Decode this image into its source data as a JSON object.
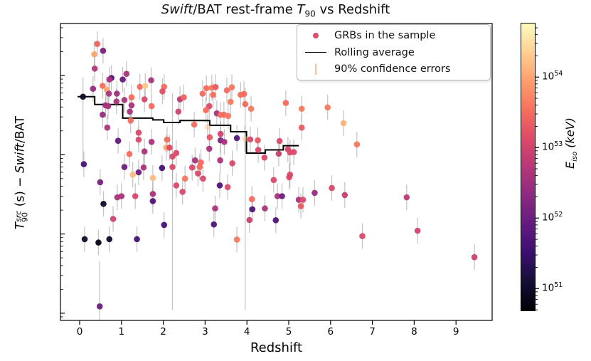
{
  "title_parts": [
    {
      "text": "Swift",
      "italic": true
    },
    {
      "text": "/BAT rest-frame ",
      "italic": false
    },
    {
      "text": "T",
      "italic": true
    },
    {
      "text": "90",
      "sub": true
    },
    {
      "text": " vs Redshift",
      "italic": false
    }
  ],
  "axes": {
    "xlabel": "Redshift",
    "x_ticks": [
      "0",
      "1",
      "2",
      "3",
      "4",
      "5",
      "6",
      "7",
      "8",
      "9"
    ],
    "y_ticks": [
      {
        "exp": "2"
      },
      {
        "exp": "1"
      },
      {
        "exp": "0"
      },
      {
        "exp": "−1"
      }
    ],
    "ylabel_parts": [
      {
        "text": "T",
        "italic": true
      },
      {
        "supsub": {
          "sup": "src",
          "sub": "90"
        }
      },
      {
        "text": " (s)  −  ",
        "italic": false
      },
      {
        "text": "Swift",
        "italic": true
      },
      {
        "text": "/BAT",
        "italic": false
      }
    ]
  },
  "legend": {
    "items": [
      {
        "marker": "dot",
        "label": "GRBs in the sample",
        "color": "#d94f6b"
      },
      {
        "marker": "line",
        "label": "Rolling average",
        "color": "#000000"
      },
      {
        "marker": "errbar",
        "label": "90% confidence errors",
        "color": "#f8c18e"
      }
    ]
  },
  "colorbar": {
    "label_parts": [
      {
        "text": "E",
        "italic": true
      },
      {
        "text": "iso",
        "sub": true
      },
      {
        "text": " (keV)",
        "italic": false
      }
    ],
    "ticks": [
      {
        "exp": "54"
      },
      {
        "exp": "53"
      },
      {
        "exp": "52"
      },
      {
        "exp": "51"
      }
    ],
    "log_min": 50.68,
    "log_max": 54.77
  },
  "colors": {
    "errorbar": "rgba(145,145,145,0.55)",
    "rolling_line": "#000000",
    "frame": "#000000",
    "magma_anchors": [
      "#000004",
      "#140e36",
      "#3b0f70",
      "#641a80",
      "#8c2981",
      "#b73779",
      "#de4968",
      "#f7705c",
      "#fe9f6d",
      "#fecf92",
      "#fcfdbf"
    ]
  },
  "chart_data": {
    "type": "scatter",
    "title": "Swift/BAT rest-frame T90 vs Redshift",
    "xlabel": "Redshift",
    "ylabel": "T90^src (s) - Swift/BAT",
    "colorbar_label": "E_iso (keV)",
    "xlim": [
      -0.46,
      9.87
    ],
    "ylog_lim": [
      -1.09,
      2.656
    ],
    "color_log_lim": [
      50.68,
      54.77
    ],
    "x_axis": "redshift",
    "y_axis": "T90 rest-frame seconds (log scale)",
    "color_axis": "log10 E_iso keV",
    "default_err_factor": 1.45,
    "points": [
      [
        0.42,
        250,
        53.4
      ],
      [
        0.56,
        205,
        52.1
      ],
      [
        0.35,
        185,
        54.0
      ],
      [
        0.36,
        122,
        52.7
      ],
      [
        0.76,
        93,
        51.7
      ],
      [
        0.71,
        89,
        52.6
      ],
      [
        1.03,
        89,
        51.9
      ],
      [
        1.12,
        105,
        52.6
      ],
      [
        0.55,
        74,
        53.5
      ],
      [
        0.65,
        66,
        54.0
      ],
      [
        0.7,
        59,
        52.6
      ],
      [
        0.32,
        68,
        52.4
      ],
      [
        0.89,
        59,
        52.5
      ],
      [
        1.44,
        72,
        53.5
      ],
      [
        1.57,
        74,
        54.3
      ],
      [
        1.71,
        87,
        52.6
      ],
      [
        2.02,
        72,
        53.5
      ],
      [
        1.98,
        63,
        53.2
      ],
      [
        0.08,
        54,
        51.0,
        8,
        95
      ],
      [
        0.88,
        47,
        52.6
      ],
      [
        0.62,
        42,
        52.5
      ],
      [
        0.68,
        41,
        52.6
      ],
      [
        1.07,
        49,
        52.6
      ],
      [
        1.24,
        53,
        53.5
      ],
      [
        1.55,
        50,
        53.1
      ],
      [
        1.24,
        42,
        52.6
      ],
      [
        1.72,
        41,
        53.5
      ],
      [
        1.2,
        35,
        52.6
      ],
      [
        0.55,
        32,
        52.4
      ],
      [
        1.22,
        27,
        53.5
      ],
      [
        0.66,
        22,
        52.6
      ],
      [
        1.41,
        19,
        53.1
      ],
      [
        0.92,
        15,
        51.9
      ],
      [
        1.41,
        15.5,
        53.1
      ],
      [
        1.72,
        14.5,
        52.6
      ],
      [
        2.09,
        15.5,
        53.5
      ],
      [
        2.07,
        12.3,
        54.0
      ],
      [
        2.15,
        12.3,
        53.1
      ],
      [
        1.19,
        10.2,
        53.5
      ],
      [
        1.55,
        11,
        52.6
      ],
      [
        2.22,
        9.5,
        53.1,
        0.11,
        60
      ],
      [
        0.1,
        7.6,
        51.6
      ],
      [
        1.07,
        7.0,
        52.0
      ],
      [
        1.53,
        6.9,
        52.6
      ],
      [
        1.97,
        6.8,
        51.6
      ],
      [
        2.22,
        7.0,
        53.1
      ],
      [
        0.49,
        4.5,
        52.1
      ],
      [
        1.27,
        5.6,
        54.2
      ],
      [
        1.41,
        6.0,
        52.0
      ],
      [
        1.75,
        5.1,
        54.2
      ],
      [
        2.31,
        4.1,
        53.1
      ],
      [
        0.9,
        2.9,
        52.6
      ],
      [
        1.0,
        3.0,
        52.6
      ],
      [
        1.33,
        3.0,
        53.1
      ],
      [
        1.75,
        3.2,
        52.6
      ],
      [
        1.75,
        2.6,
        51.7
      ],
      [
        0.57,
        2.4,
        51.0
      ],
      [
        0.8,
        1.55,
        53.0
      ],
      [
        2.02,
        1.3,
        51.6
      ],
      [
        0.12,
        0.86,
        51.0
      ],
      [
        0.45,
        0.78,
        50.8
      ],
      [
        0.71,
        0.86,
        51.0
      ],
      [
        1.37,
        0.86,
        51.6
      ],
      [
        0.48,
        0.122,
        52.0,
        0.05,
        0.45
      ],
      [
        2.4,
        50,
        52.8
      ],
      [
        2.49,
        53,
        53.4
      ],
      [
        2.36,
        35,
        53.0
      ],
      [
        2.94,
        59,
        53.5
      ],
      [
        3.03,
        69,
        53.5
      ],
      [
        3.16,
        70,
        53.6
      ],
      [
        3.25,
        71.5,
        53.3
      ],
      [
        3.19,
        57,
        53.5
      ],
      [
        3.1,
        41,
        53.1
      ],
      [
        3.02,
        36.5,
        53.5
      ],
      [
        3.52,
        65,
        53.5
      ],
      [
        3.64,
        71,
        53.6
      ],
      [
        3.61,
        46.5,
        53.6
      ],
      [
        3.85,
        57,
        53.5
      ],
      [
        3.93,
        58.5,
        53.5
      ],
      [
        3.96,
        43.5,
        53.5,
        0.11,
        70
      ],
      [
        4.1,
        38,
        53.6
      ],
      [
        4.93,
        45,
        53.5
      ],
      [
        3.28,
        33.3,
        52.6
      ],
      [
        3.37,
        31.8,
        53.5
      ],
      [
        3.45,
        32,
        53.5
      ],
      [
        3.55,
        30.8,
        53.6
      ],
      [
        2.74,
        24,
        53.5
      ],
      [
        3.06,
        22.3,
        54.2
      ],
      [
        3.11,
        16.6,
        53.3
      ],
      [
        3.37,
        18.3,
        53.0
      ],
      [
        3.37,
        15.2,
        52.2
      ],
      [
        3.46,
        14.5,
        52.6
      ],
      [
        3.76,
        16.2,
        51.8
      ],
      [
        3.95,
        15.9,
        54.3
      ],
      [
        4.08,
        15.6,
        53.1
      ],
      [
        4.26,
        15.2,
        53.3
      ],
      [
        4.27,
        11.5,
        53.1
      ],
      [
        4.42,
        9.2,
        53.1
      ],
      [
        4.78,
        14.9,
        53.1
      ],
      [
        4.76,
        10.3,
        52.9
      ],
      [
        2.31,
        10.5,
        53.1
      ],
      [
        2.76,
        8.5,
        52.6
      ],
      [
        2.9,
        8.0,
        53.5
      ],
      [
        3.1,
        11.9,
        52.6
      ],
      [
        3.36,
        8.5,
        52.6
      ],
      [
        3.65,
        7.8,
        53.1
      ],
      [
        2.69,
        6.9,
        53.1
      ],
      [
        2.87,
        7.0,
        53.5
      ],
      [
        2.52,
        5.0,
        53.6
      ],
      [
        2.46,
        3.4,
        53.1
      ],
      [
        2.83,
        5.8,
        53.1
      ],
      [
        2.95,
        5.0,
        53.1
      ],
      [
        3.35,
        4.1,
        51.7
      ],
      [
        3.54,
        3.9,
        53.1
      ],
      [
        3.24,
        2.1,
        52.6
      ],
      [
        3.21,
        1.32,
        51.7
      ],
      [
        3.76,
        0.85,
        53.6
      ],
      [
        4.12,
        2.75,
        53.5
      ],
      [
        4.13,
        2.05,
        51.7
      ],
      [
        4.06,
        1.5,
        52.9
      ],
      [
        4.43,
        2.1,
        52.6
      ],
      [
        4.64,
        4.8,
        53.1
      ],
      [
        4.73,
        3.0,
        52.6
      ],
      [
        4.84,
        3.0,
        52.0
      ],
      [
        4.69,
        1.49,
        51.7
      ],
      [
        5.01,
        5.2,
        53.1
      ],
      [
        5.31,
        38,
        53.6
      ],
      [
        5.93,
        39.5,
        53.6
      ],
      [
        5.31,
        22,
        53.3
      ],
      [
        6.31,
        25,
        54.1
      ],
      [
        6.63,
        13.5,
        53.6
      ],
      [
        4.98,
        11.7,
        53.1
      ],
      [
        5.03,
        10.7,
        53.1
      ],
      [
        5.12,
        10.8,
        53.1
      ],
      [
        5.03,
        5.6,
        53.1
      ],
      [
        5.62,
        3.3,
        52.4
      ],
      [
        6.03,
        3.8,
        53.1
      ],
      [
        6.34,
        3.1,
        52.9
      ],
      [
        5.24,
        2.7,
        52.6
      ],
      [
        5.34,
        2.7,
        53.1
      ],
      [
        5.29,
        2.25,
        53.3
      ],
      [
        6.76,
        0.94,
        53.1
      ],
      [
        7.82,
        2.9,
        52.8
      ],
      [
        8.08,
        1.1,
        53.0
      ],
      [
        9.44,
        0.51,
        53.0,
        0.35,
        0.75
      ]
    ],
    "faint_point_indices": [
      87,
      93
    ],
    "rolling_average_steps": [
      [
        -0.05,
        0.36,
        54
      ],
      [
        0.36,
        1.03,
        43
      ],
      [
        1.03,
        1.75,
        29
      ],
      [
        1.75,
        2.01,
        27.5
      ],
      [
        2.01,
        2.4,
        25.5
      ],
      [
        2.4,
        3.11,
        27
      ],
      [
        3.11,
        3.61,
        23.5
      ],
      [
        3.61,
        3.99,
        19.5
      ],
      [
        3.99,
        4.44,
        10.5
      ],
      [
        4.44,
        4.87,
        11.5
      ],
      [
        4.87,
        5.24,
        13
      ]
    ]
  }
}
